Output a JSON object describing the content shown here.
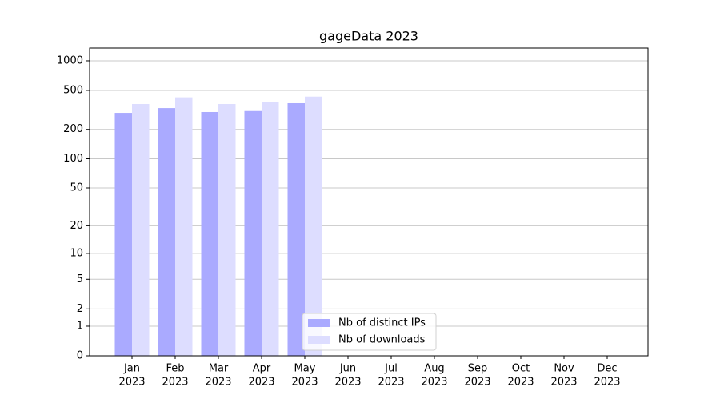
{
  "chart_data": {
    "type": "bar",
    "title": "gageData 2023",
    "categories": [
      [
        "Jan",
        "2023"
      ],
      [
        "Feb",
        "2023"
      ],
      [
        "Mar",
        "2023"
      ],
      [
        "Apr",
        "2023"
      ],
      [
        "May",
        "2023"
      ],
      [
        "Jun",
        "2023"
      ],
      [
        "Jul",
        "2023"
      ],
      [
        "Aug",
        "2023"
      ],
      [
        "Sep",
        "2023"
      ],
      [
        "Oct",
        "2023"
      ],
      [
        "Nov",
        "2023"
      ],
      [
        "Dec",
        "2023"
      ]
    ],
    "series": [
      {
        "name": "Nb of distinct IPs",
        "color": "#aaaaff",
        "values": [
          295,
          330,
          301,
          308,
          370,
          0,
          0,
          0,
          0,
          0,
          0,
          0
        ]
      },
      {
        "name": "Nb of downloads",
        "color": "#ddddff",
        "values": [
          363,
          425,
          363,
          377,
          432,
          0,
          0,
          0,
          0,
          0,
          0,
          0
        ]
      }
    ],
    "yscale": "log1p",
    "ylim": [
      0,
      1349
    ],
    "yticks": [
      0,
      1,
      2,
      5,
      10,
      20,
      50,
      100,
      200,
      500,
      1000
    ],
    "grid": true,
    "legend": "lower center"
  }
}
